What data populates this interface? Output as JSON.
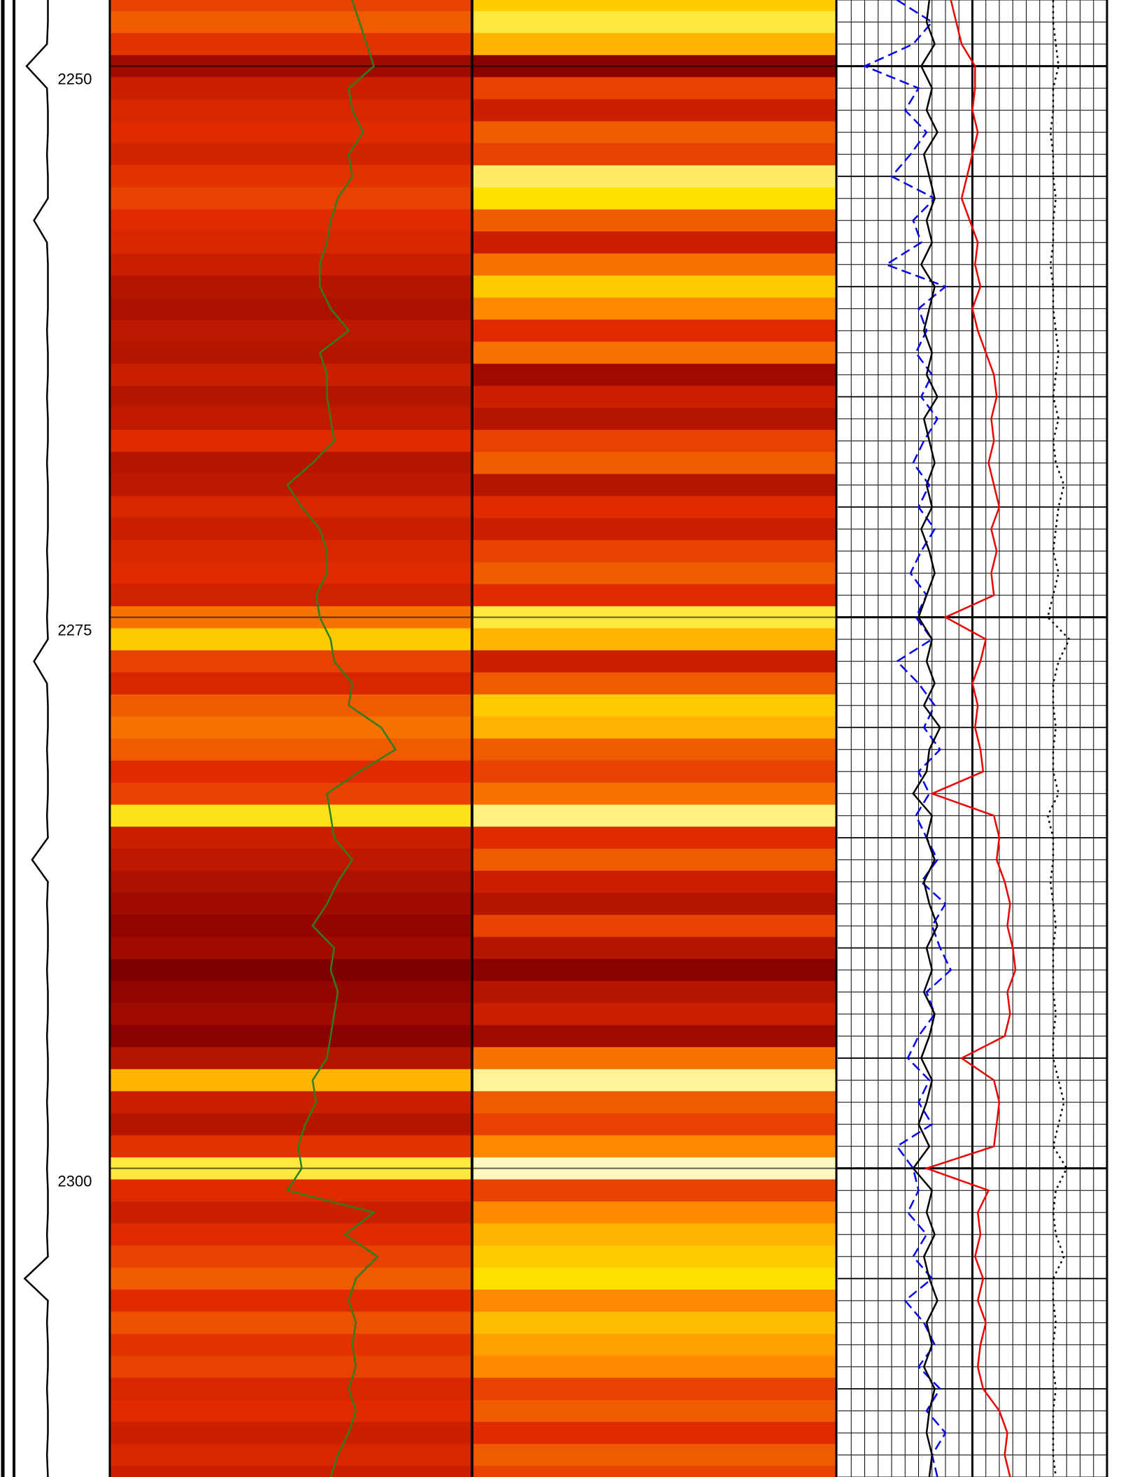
{
  "chart_data": {
    "type": "well-log",
    "depth": [
      2247,
      2248,
      2249,
      2250,
      2251,
      2252,
      2253,
      2254,
      2255,
      2256,
      2257,
      2258,
      2259,
      2260,
      2261,
      2262,
      2263,
      2264,
      2265,
      2266,
      2267,
      2268,
      2269,
      2270,
      2271,
      2272,
      2273,
      2274,
      2275,
      2276,
      2277,
      2278,
      2279,
      2280,
      2281,
      2282,
      2283,
      2284,
      2285,
      2286,
      2287,
      2288,
      2289,
      2290,
      2291,
      2292,
      2293,
      2294,
      2295,
      2296,
      2297,
      2298,
      2299,
      2300,
      2301,
      2302,
      2303,
      2304,
      2305,
      2306,
      2307,
      2308,
      2309,
      2310,
      2311,
      2312,
      2313,
      2314
    ],
    "ylim": [
      2247,
      2314
    ],
    "yticks": [
      2250,
      2275,
      2300
    ],
    "xlim": [
      0,
      1
    ],
    "colormap": [
      "#000000",
      "#8b0000",
      "#e02a00",
      "#ff8a00",
      "#ffe000",
      "#ffffff"
    ],
    "images": [
      {
        "track": 1,
        "values": [
          0.45,
          0.5,
          0.42,
          0.25,
          0.35,
          0.38,
          0.4,
          0.37,
          0.42,
          0.45,
          0.4,
          0.38,
          0.35,
          0.3,
          0.28,
          0.32,
          0.3,
          0.35,
          0.3,
          0.33,
          0.4,
          0.3,
          0.32,
          0.38,
          0.35,
          0.38,
          0.4,
          0.36,
          0.55,
          0.75,
          0.45,
          0.38,
          0.5,
          0.55,
          0.5,
          0.4,
          0.45,
          0.82,
          0.35,
          0.32,
          0.28,
          0.25,
          0.22,
          0.25,
          0.18,
          0.22,
          0.25,
          0.2,
          0.3,
          0.7,
          0.35,
          0.3,
          0.42,
          0.85,
          0.4,
          0.35,
          0.4,
          0.45,
          0.5,
          0.4,
          0.48,
          0.42,
          0.45,
          0.38,
          0.4,
          0.35,
          0.38,
          0.35
        ]
      },
      {
        "track": 2,
        "values": [
          0.75,
          0.85,
          0.7,
          0.2,
          0.45,
          0.35,
          0.5,
          0.45,
          0.88,
          0.8,
          0.5,
          0.35,
          0.55,
          0.75,
          0.6,
          0.4,
          0.55,
          0.25,
          0.35,
          0.3,
          0.45,
          0.5,
          0.3,
          0.4,
          0.35,
          0.45,
          0.5,
          0.4,
          0.85,
          0.7,
          0.35,
          0.5,
          0.75,
          0.7,
          0.5,
          0.45,
          0.55,
          0.9,
          0.4,
          0.5,
          0.35,
          0.3,
          0.45,
          0.3,
          0.2,
          0.3,
          0.35,
          0.25,
          0.55,
          0.92,
          0.5,
          0.45,
          0.6,
          0.95,
          0.45,
          0.6,
          0.7,
          0.75,
          0.8,
          0.6,
          0.72,
          0.65,
          0.6,
          0.45,
          0.5,
          0.4,
          0.5,
          0.45
        ]
      }
    ],
    "series": [
      {
        "track": 0,
        "color": "#000000",
        "style": "solid",
        "values": [
          0.35,
          0.35,
          0.34,
          0.12,
          0.34,
          0.35,
          0.35,
          0.34,
          0.35,
          0.35,
          0.2,
          0.34,
          0.35,
          0.35,
          0.35,
          0.34,
          0.35,
          0.35,
          0.34,
          0.35,
          0.35,
          0.34,
          0.35,
          0.35,
          0.35,
          0.34,
          0.35,
          0.35,
          0.34,
          0.35,
          0.2,
          0.34,
          0.35,
          0.35,
          0.34,
          0.35,
          0.35,
          0.34,
          0.35,
          0.18,
          0.35,
          0.34,
          0.35,
          0.35,
          0.34,
          0.35,
          0.35,
          0.34,
          0.35,
          0.35,
          0.34,
          0.35,
          0.35,
          0.34,
          0.35,
          0.35,
          0.34,
          0.35,
          0.1,
          0.35,
          0.34,
          0.35,
          0.35,
          0.34,
          0.35,
          0.35,
          0.34,
          0.35
        ]
      },
      {
        "track": 1,
        "color": "#2e7d1e",
        "style": "solid",
        "values": [
          0.67,
          0.69,
          0.71,
          0.73,
          0.66,
          0.67,
          0.7,
          0.66,
          0.67,
          0.63,
          0.61,
          0.6,
          0.58,
          0.58,
          0.61,
          0.66,
          0.58,
          0.6,
          0.6,
          0.61,
          0.62,
          0.56,
          0.49,
          0.53,
          0.58,
          0.6,
          0.6,
          0.57,
          0.58,
          0.61,
          0.62,
          0.67,
          0.66,
          0.75,
          0.79,
          0.69,
          0.6,
          0.61,
          0.62,
          0.67,
          0.63,
          0.6,
          0.56,
          0.62,
          0.61,
          0.63,
          0.62,
          0.61,
          0.6,
          0.56,
          0.57,
          0.54,
          0.52,
          0.53,
          0.49,
          0.73,
          0.65,
          0.74,
          0.68,
          0.66,
          0.68,
          0.67,
          0.68,
          0.66,
          0.68,
          0.66,
          0.63,
          0.61
        ]
      },
      {
        "track": 3,
        "color": "#0000ee",
        "style": "dashed",
        "values": [
          0.22,
          0.35,
          0.28,
          0.1,
          0.3,
          0.25,
          0.33,
          0.27,
          0.2,
          0.36,
          0.28,
          0.31,
          0.18,
          0.4,
          0.3,
          0.33,
          0.29,
          0.35,
          0.31,
          0.37,
          0.32,
          0.28,
          0.34,
          0.3,
          0.36,
          0.31,
          0.27,
          0.33,
          0.29,
          0.35,
          0.22,
          0.3,
          0.36,
          0.32,
          0.38,
          0.3,
          0.34,
          0.29,
          0.33,
          0.37,
          0.31,
          0.4,
          0.35,
          0.38,
          0.42,
          0.33,
          0.36,
          0.3,
          0.26,
          0.34,
          0.3,
          0.35,
          0.22,
          0.28,
          0.3,
          0.26,
          0.33,
          0.28,
          0.35,
          0.25,
          0.32,
          0.36,
          0.3,
          0.38,
          0.33,
          0.4,
          0.35,
          0.37
        ]
      },
      {
        "track": 3,
        "color": "#000000",
        "style": "solid",
        "values": [
          0.34,
          0.33,
          0.36,
          0.31,
          0.35,
          0.33,
          0.37,
          0.32,
          0.34,
          0.36,
          0.33,
          0.35,
          0.31,
          0.36,
          0.34,
          0.32,
          0.35,
          0.33,
          0.37,
          0.32,
          0.34,
          0.36,
          0.33,
          0.35,
          0.31,
          0.34,
          0.36,
          0.33,
          0.3,
          0.35,
          0.33,
          0.36,
          0.32,
          0.38,
          0.34,
          0.33,
          0.28,
          0.35,
          0.33,
          0.36,
          0.32,
          0.34,
          0.37,
          0.33,
          0.35,
          0.32,
          0.36,
          0.34,
          0.31,
          0.35,
          0.33,
          0.3,
          0.34,
          0.28,
          0.35,
          0.33,
          0.36,
          0.32,
          0.34,
          0.37,
          0.33,
          0.35,
          0.32,
          0.36,
          0.34,
          0.33,
          0.35,
          0.34
        ]
      },
      {
        "track": 3,
        "color": "#ee0000",
        "style": "solid",
        "values": [
          0.42,
          0.44,
          0.46,
          0.51,
          0.51,
          0.5,
          0.52,
          0.5,
          0.48,
          0.46,
          0.49,
          0.52,
          0.51,
          0.53,
          0.5,
          0.52,
          0.55,
          0.58,
          0.59,
          0.57,
          0.58,
          0.56,
          0.58,
          0.6,
          0.57,
          0.59,
          0.57,
          0.58,
          0.4,
          0.55,
          0.53,
          0.5,
          0.52,
          0.51,
          0.53,
          0.54,
          0.35,
          0.58,
          0.6,
          0.59,
          0.62,
          0.64,
          0.63,
          0.65,
          0.66,
          0.63,
          0.64,
          0.62,
          0.46,
          0.58,
          0.6,
          0.59,
          0.58,
          0.33,
          0.56,
          0.52,
          0.53,
          0.51,
          0.54,
          0.52,
          0.55,
          0.53,
          0.52,
          0.54,
          0.6,
          0.63,
          0.62,
          0.64
        ]
      },
      {
        "track": 3,
        "color": "#000000",
        "style": "dotted",
        "values": [
          0.8,
          0.8,
          0.81,
          0.82,
          0.8,
          0.8,
          0.79,
          0.8,
          0.8,
          0.81,
          0.8,
          0.8,
          0.79,
          0.8,
          0.8,
          0.81,
          0.82,
          0.81,
          0.8,
          0.82,
          0.8,
          0.81,
          0.84,
          0.82,
          0.81,
          0.8,
          0.82,
          0.8,
          0.78,
          0.86,
          0.82,
          0.8,
          0.8,
          0.81,
          0.8,
          0.8,
          0.82,
          0.78,
          0.8,
          0.8,
          0.79,
          0.8,
          0.81,
          0.8,
          0.8,
          0.8,
          0.81,
          0.8,
          0.8,
          0.82,
          0.84,
          0.82,
          0.8,
          0.85,
          0.81,
          0.8,
          0.81,
          0.84,
          0.8,
          0.8,
          0.81,
          0.8,
          0.8,
          0.81,
          0.8,
          0.8,
          0.8,
          0.81
        ]
      }
    ]
  }
}
